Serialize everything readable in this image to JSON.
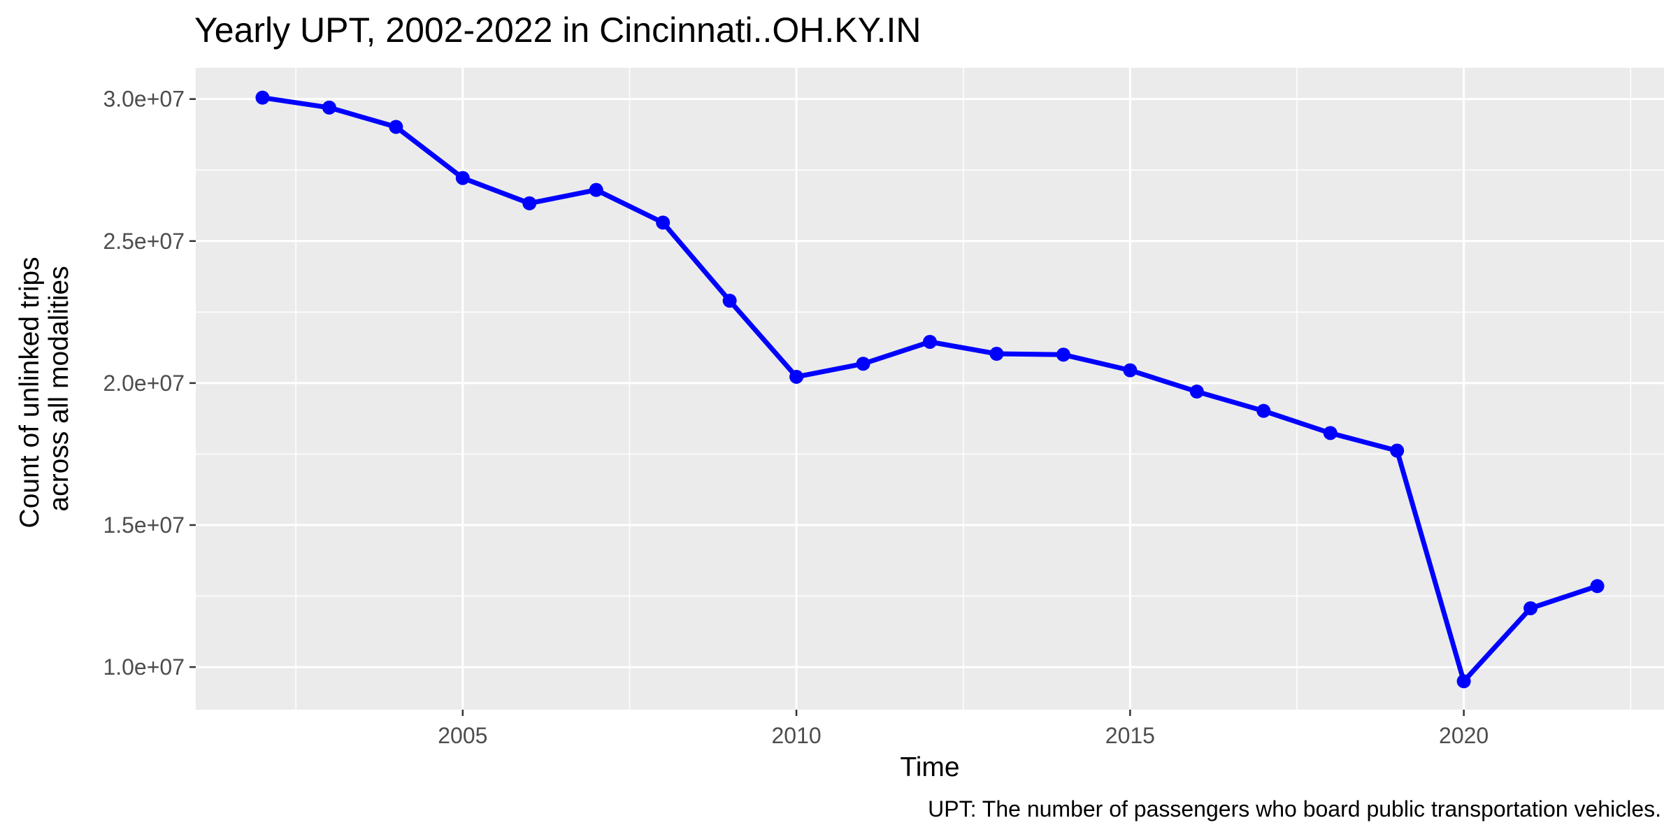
{
  "chart_data": {
    "type": "line",
    "title": "Yearly UPT, 2002-2022 in Cincinnati..OH.KY.IN",
    "xlabel": "Time",
    "ylabel_lines": [
      "Count of unlinked trips",
      "across all modalities"
    ],
    "caption": "UPT: The number of passengers who board public transportation vehicles.",
    "x": [
      2002,
      2003,
      2004,
      2005,
      2006,
      2007,
      2008,
      2009,
      2010,
      2011,
      2012,
      2013,
      2014,
      2015,
      2016,
      2017,
      2018,
      2019,
      2020,
      2021,
      2022
    ],
    "values": [
      30050000,
      29700000,
      29020000,
      27220000,
      26330000,
      26800000,
      25650000,
      22900000,
      20220000,
      20680000,
      21450000,
      21030000,
      21000000,
      20450000,
      19700000,
      19020000,
      18240000,
      17620000,
      9500000,
      12070000,
      12850000
    ],
    "x_ticks": [
      2005,
      2010,
      2015,
      2020
    ],
    "x_tick_labels": [
      "2005",
      "2010",
      "2015",
      "2020"
    ],
    "y_ticks": [
      10000000,
      15000000,
      20000000,
      25000000,
      30000000
    ],
    "y_tick_labels": [
      "1.0e+07",
      "1.5e+07",
      "2.0e+07",
      "2.5e+07",
      "3.0e+07"
    ],
    "xlim": [
      2001,
      2023
    ],
    "ylim": [
      8500000,
      31100000
    ],
    "grid": true,
    "line_color": "#0000ff",
    "panel_color": "#ebebeb",
    "grid_color": "#ffffff"
  }
}
